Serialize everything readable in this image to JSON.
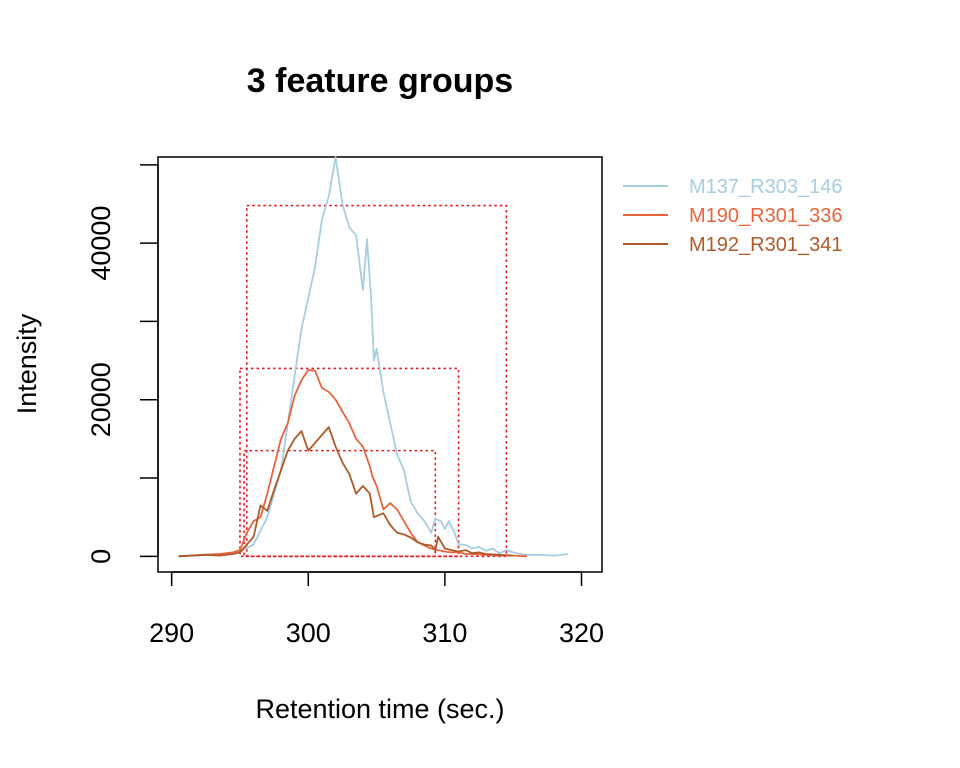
{
  "chart_data": {
    "type": "line",
    "title": "3 feature groups",
    "xlabel": "Retention time (sec.)",
    "ylabel": "Intensity",
    "xlim": [
      289,
      321.5
    ],
    "ylim": [
      -2000,
      51000
    ],
    "x_ticks": [
      290,
      300,
      310,
      320
    ],
    "x_tick_labels": [
      "290",
      "300",
      "310",
      "320"
    ],
    "y_ticks": [
      0,
      10000,
      20000,
      30000,
      40000,
      50000
    ],
    "y_tick_labels": [
      "0",
      "",
      "20000",
      "",
      "40000",
      ""
    ],
    "legend_position": "right",
    "series": [
      {
        "name": "M137_R303_146",
        "color": "#a6cee3",
        "points": [
          [
            290.5,
            0
          ],
          [
            292,
            200
          ],
          [
            293.5,
            300
          ],
          [
            295,
            600
          ],
          [
            296,
            1500
          ],
          [
            297,
            5000
          ],
          [
            298,
            11000
          ],
          [
            299,
            23000
          ],
          [
            299.5,
            29000
          ],
          [
            300,
            33000
          ],
          [
            300.5,
            37000
          ],
          [
            301,
            43000
          ],
          [
            301.5,
            46000
          ],
          [
            302,
            51000
          ],
          [
            302.5,
            45000
          ],
          [
            303,
            42000
          ],
          [
            303.5,
            41000
          ],
          [
            304,
            34000
          ],
          [
            304.3,
            40500
          ],
          [
            304.6,
            33000
          ],
          [
            304.8,
            25000
          ],
          [
            305,
            26500
          ],
          [
            305.5,
            21000
          ],
          [
            306,
            17000
          ],
          [
            306.5,
            13000
          ],
          [
            307,
            11000
          ],
          [
            307.5,
            7000
          ],
          [
            308,
            5500
          ],
          [
            308.5,
            4500
          ],
          [
            309,
            3000
          ],
          [
            309.3,
            4800
          ],
          [
            309.7,
            4500
          ],
          [
            310,
            3500
          ],
          [
            310.3,
            4500
          ],
          [
            310.7,
            3000
          ],
          [
            311,
            1500
          ],
          [
            311.5,
            1500
          ],
          [
            312,
            1000
          ],
          [
            312.5,
            1200
          ],
          [
            313,
            700
          ],
          [
            313.5,
            1000
          ],
          [
            314,
            400
          ],
          [
            314.5,
            800
          ],
          [
            315,
            500
          ],
          [
            315.5,
            300
          ],
          [
            316,
            200
          ],
          [
            317,
            200
          ],
          [
            318,
            100
          ],
          [
            319,
            300
          ]
        ]
      },
      {
        "name": "M190_R301_336",
        "color": "#e8643c",
        "points": [
          [
            290.5,
            0
          ],
          [
            291.5,
            100
          ],
          [
            292.5,
            200
          ],
          [
            293.5,
            300
          ],
          [
            294.5,
            500
          ],
          [
            295,
            800
          ],
          [
            295.5,
            3000
          ],
          [
            296,
            4500
          ],
          [
            296.5,
            5000
          ],
          [
            297,
            8000
          ],
          [
            297.5,
            11500
          ],
          [
            298,
            15000
          ],
          [
            298.5,
            17000
          ],
          [
            299,
            20500
          ],
          [
            299.5,
            22500
          ],
          [
            300,
            23800
          ],
          [
            300.5,
            23700
          ],
          [
            301,
            21500
          ],
          [
            301.5,
            21000
          ],
          [
            302,
            20000
          ],
          [
            302.5,
            18500
          ],
          [
            303,
            17000
          ],
          [
            303.5,
            15000
          ],
          [
            304,
            14000
          ],
          [
            304.5,
            11500
          ],
          [
            304.7,
            10200
          ],
          [
            305,
            9000
          ],
          [
            305.5,
            6000
          ],
          [
            306,
            6800
          ],
          [
            306.5,
            6000
          ],
          [
            307,
            4500
          ],
          [
            307.5,
            3000
          ],
          [
            308,
            1800
          ],
          [
            308.5,
            1400
          ],
          [
            309,
            1000
          ],
          [
            309.5,
            800
          ],
          [
            310,
            600
          ],
          [
            310.5,
            500
          ],
          [
            311,
            500
          ],
          [
            311.5,
            300
          ],
          [
            312,
            300
          ],
          [
            313,
            200
          ],
          [
            314,
            100
          ],
          [
            315,
            100
          ],
          [
            316,
            0
          ]
        ]
      },
      {
        "name": "M192_R301_341",
        "color": "#b05a28",
        "points": [
          [
            290.5,
            0
          ],
          [
            291.5,
            100
          ],
          [
            292.5,
            200
          ],
          [
            293.5,
            100
          ],
          [
            294.5,
            300
          ],
          [
            295,
            500
          ],
          [
            295.5,
            1500
          ],
          [
            296,
            2500
          ],
          [
            296.5,
            6500
          ],
          [
            297,
            5800
          ],
          [
            297.5,
            8500
          ],
          [
            298,
            11000
          ],
          [
            298.5,
            13500
          ],
          [
            299,
            15000
          ],
          [
            299.5,
            16000
          ],
          [
            300,
            13500
          ],
          [
            300.5,
            14500
          ],
          [
            301,
            15500
          ],
          [
            301.5,
            16500
          ],
          [
            302,
            14000
          ],
          [
            302.5,
            12000
          ],
          [
            303,
            10500
          ],
          [
            303.5,
            8000
          ],
          [
            304,
            9000
          ],
          [
            304.5,
            8000
          ],
          [
            304.8,
            5000
          ],
          [
            305.5,
            5500
          ],
          [
            306,
            4000
          ],
          [
            306.5,
            3000
          ],
          [
            307,
            2800
          ],
          [
            307.5,
            2400
          ],
          [
            308,
            1800
          ],
          [
            308.5,
            1500
          ],
          [
            309,
            1400
          ],
          [
            309.3,
            800
          ],
          [
            309.5,
            2500
          ],
          [
            310,
            1000
          ],
          [
            310.5,
            800
          ],
          [
            311,
            600
          ],
          [
            311.5,
            800
          ],
          [
            312,
            400
          ],
          [
            312.5,
            500
          ],
          [
            313,
            300
          ],
          [
            314,
            200
          ],
          [
            315,
            100
          ]
        ]
      }
    ],
    "rectangles": [
      {
        "series": "M137_R303_146",
        "x0": 295.5,
        "x1": 314.5,
        "y0": 0,
        "y1": 44800
      },
      {
        "series": "M190_R301_336",
        "x0": 295.0,
        "x1": 311.0,
        "y0": 0,
        "y1": 24000
      },
      {
        "series": "M192_R301_341",
        "x0": 295.3,
        "x1": 309.3,
        "y0": 0,
        "y1": 13500
      }
    ],
    "rect_color": "#e41a1c"
  }
}
